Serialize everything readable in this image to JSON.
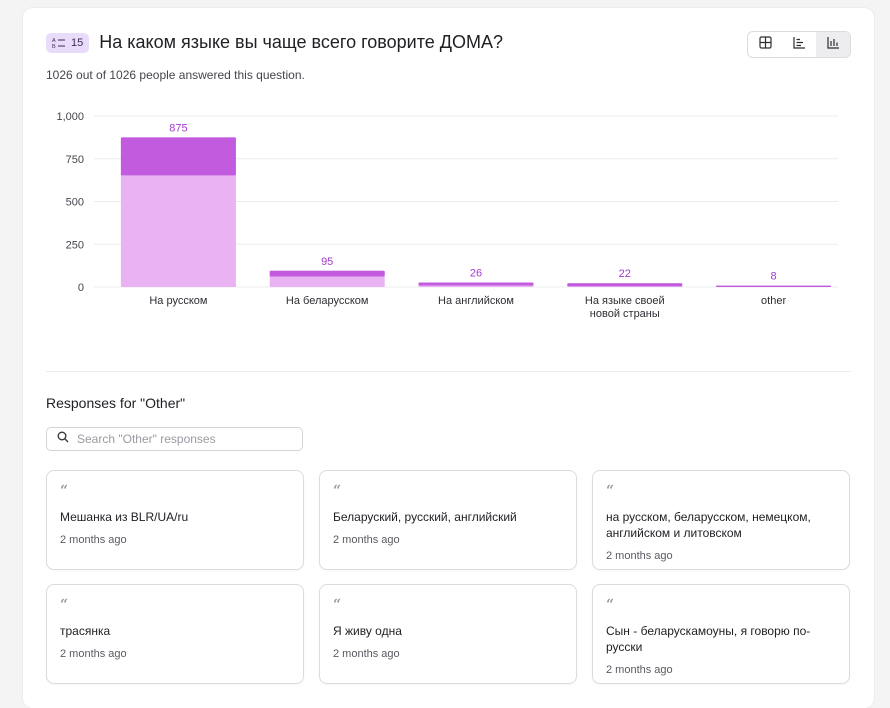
{
  "question": {
    "number": "15",
    "title": "На каком языке вы чаще всего говорите ДОМА?",
    "answered_text": "1026 out of 1026 people answered this question."
  },
  "view_toggle": {
    "options": [
      "table-icon",
      "bar-horizontal-icon",
      "bar-vertical-icon"
    ],
    "active": "bar-vertical-icon"
  },
  "colors": {
    "bar_base": "#e8b2f3",
    "bar_top": "#c25bdd",
    "value_label": "#a33ad0"
  },
  "chart_data": {
    "type": "bar",
    "categories": [
      "На русском",
      "На беларусском",
      "На английском",
      "На языке своей новой страны",
      "other"
    ],
    "category_lines": [
      [
        "На русском"
      ],
      [
        "На беларусском"
      ],
      [
        "На английском"
      ],
      [
        "На языке своей",
        "новой страны"
      ],
      [
        "other"
      ]
    ],
    "values": [
      875,
      95,
      26,
      22,
      8
    ],
    "value_labels": [
      "875",
      "95",
      "26",
      "22",
      "8"
    ],
    "ylim": [
      0,
      1000
    ],
    "yticks": [
      0,
      250,
      500,
      750,
      1000
    ],
    "ytick_labels": [
      "0",
      "250",
      "500",
      "750",
      "1,000"
    ],
    "grid": true
  },
  "other_section": {
    "title": "Responses for \"Other\"",
    "search_placeholder": "Search \"Other\" responses",
    "responses": [
      {
        "text": "Мешанка из BLR/UA/ru",
        "time": "2 months ago"
      },
      {
        "text": "Беларуский, русский, английский",
        "time": "2 months ago"
      },
      {
        "text": "на русском, беларусском, немецком, английском и литовском",
        "time": "2 months ago"
      },
      {
        "text": "трасянка",
        "time": "2 months ago"
      },
      {
        "text": "Я живу одна",
        "time": "2 months ago"
      },
      {
        "text": "Сын - беларускамоуны, я говорю по-русски",
        "time": "2 months ago"
      }
    ]
  }
}
